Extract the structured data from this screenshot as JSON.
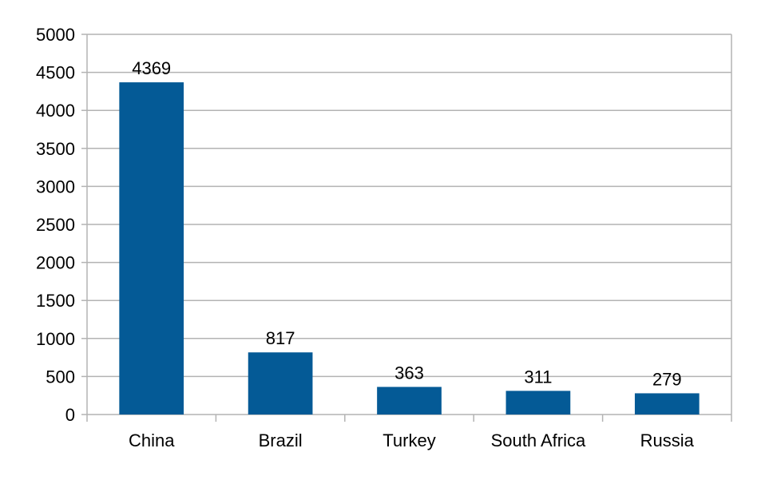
{
  "colors": {
    "bar": "#045a96",
    "grid": "#b3b3b3",
    "axis": "#b3b3b3",
    "background": "#ffffff"
  },
  "chart_data": {
    "type": "bar",
    "title": "",
    "xlabel": "",
    "ylabel": "",
    "categories": [
      "China",
      "Brazil",
      "Turkey",
      "South Africa",
      "Russia"
    ],
    "values": [
      4369,
      817,
      363,
      311,
      279
    ],
    "data_labels": [
      "4369",
      "817",
      "363",
      "311",
      "279"
    ],
    "ylim": [
      0,
      5000
    ],
    "yticks": [
      0,
      500,
      1000,
      1500,
      2000,
      2500,
      3000,
      3500,
      4000,
      4500,
      5000
    ],
    "ytick_labels": [
      "0",
      "500",
      "1000",
      "1500",
      "2000",
      "2500",
      "3000",
      "3500",
      "4000",
      "4500",
      "5000"
    ],
    "grid": true,
    "legend": "none"
  }
}
